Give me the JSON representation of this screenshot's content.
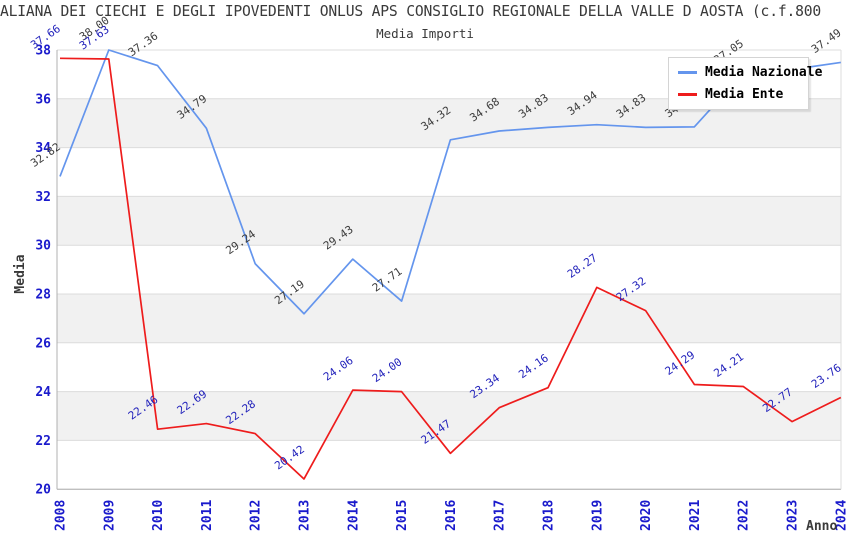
{
  "title": "ALIANA DEI CIECHI E DEGLI IPOVEDENTI ONLUS APS CONSIGLIO REGIONALE DELLA VALLE D AOSTA (c.f.800",
  "subtitle": "Media Importi",
  "legend": {
    "items": [
      {
        "label": "Media Nazionale",
        "color": "#6495ed"
      },
      {
        "label": "Media Ente",
        "color": "#ee1c1c"
      }
    ]
  },
  "chart_data": {
    "type": "line",
    "title": "Media Importi",
    "xlabel": "Anno",
    "ylabel": "Media",
    "x": [
      2008,
      2009,
      2010,
      2011,
      2012,
      2013,
      2014,
      2015,
      2016,
      2017,
      2018,
      2019,
      2020,
      2021,
      2022,
      2023,
      2024
    ],
    "ylim": [
      20,
      38
    ],
    "ytick_step": 2,
    "grid": true,
    "alternating_bands": true,
    "legend_position": "top-right",
    "series": [
      {
        "name": "Media Nazionale",
        "color": "#6495ed",
        "label_color": "#3c3c3c",
        "values": [
          32.82,
          38.0,
          37.36,
          34.79,
          29.24,
          27.19,
          29.43,
          27.71,
          34.32,
          34.68,
          34.83,
          34.94,
          34.83,
          34.85,
          37.05,
          37.2,
          37.49
        ],
        "labels": [
          "32.82",
          "38.00",
          "37.36",
          "34.79",
          "29.24",
          "27.19",
          "29.43",
          "27.71",
          "34.32",
          "34.68",
          "34.83",
          "34.94",
          "34.83",
          "34.85",
          "37.05",
          null,
          "37.49"
        ]
      },
      {
        "name": "Media Ente",
        "color": "#ee1c1c",
        "label_color": "#2323bb",
        "values": [
          37.66,
          37.63,
          22.46,
          22.69,
          22.28,
          20.42,
          24.06,
          24.0,
          21.47,
          23.34,
          24.16,
          28.27,
          27.32,
          24.29,
          24.21,
          22.77,
          23.76
        ],
        "labels": [
          "37.66",
          "37.63",
          "22.46",
          "22.69",
          "22.28",
          "20.42",
          "24.06",
          "24.00",
          "21.47",
          "23.34",
          "24.16",
          "28.27",
          "27.32",
          "24.29",
          "24.21",
          "22.77",
          "23.76"
        ]
      }
    ],
    "style": {
      "tick_label_color": "#1a1acc",
      "axis_title_color": "#3a3a3a",
      "band_color": "#f1f1f1",
      "grid_color": "#dcdcdc",
      "axis_line_color": "#b0b0b0",
      "background": "#ffffff"
    }
  }
}
